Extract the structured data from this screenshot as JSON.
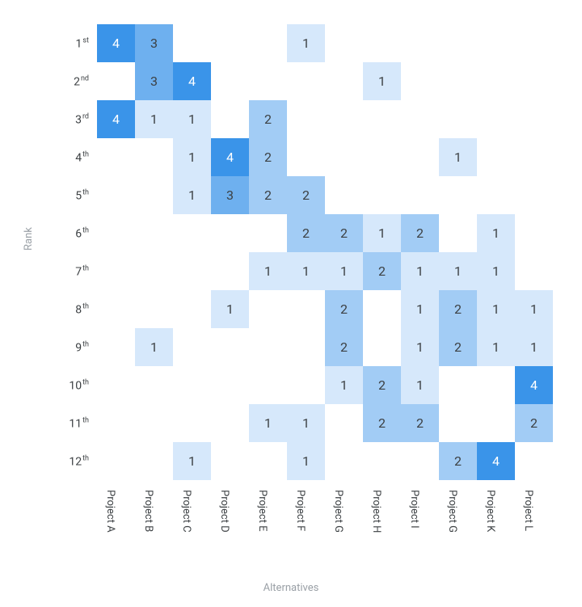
{
  "chart": {
    "type": "heatmap",
    "y_axis_title": "Rank",
    "x_axis_title": "Alternatives",
    "background_color": "#ffffff",
    "text_color": "#3c4043",
    "axis_title_color": "#9aa0a6",
    "cell_fontsize": 16,
    "label_fontsize": 14,
    "axis_title_fontsize": 13,
    "value_color_map": {
      "0": {
        "bg": "#ffffff",
        "fg": "#3c4043"
      },
      "1": {
        "bg": "#d6e8fb",
        "fg": "#3c4043"
      },
      "2": {
        "bg": "#a2ccf5",
        "fg": "#3c4043"
      },
      "3": {
        "bg": "#6eb0ef",
        "fg": "#3c4043"
      },
      "4": {
        "bg": "#3a94e9",
        "fg": "#ffffff"
      }
    },
    "row_labels": [
      {
        "num": "1",
        "suffix": "st"
      },
      {
        "num": "2",
        "suffix": "nd"
      },
      {
        "num": "3",
        "suffix": "rd"
      },
      {
        "num": "4",
        "suffix": "th"
      },
      {
        "num": "5",
        "suffix": "th"
      },
      {
        "num": "6",
        "suffix": "th"
      },
      {
        "num": "7",
        "suffix": "th"
      },
      {
        "num": "8",
        "suffix": "th"
      },
      {
        "num": "9",
        "suffix": "th"
      },
      {
        "num": "10",
        "suffix": "th"
      },
      {
        "num": "11",
        "suffix": "th"
      },
      {
        "num": "12",
        "suffix": "th"
      }
    ],
    "column_labels": [
      "Project A",
      "Project B",
      "Project C",
      "Project D",
      "Project E",
      "Project F",
      "Project G",
      "Project H",
      "Project I",
      "Project G",
      "Project K",
      "Project L"
    ],
    "values": [
      [
        4,
        3,
        0,
        0,
        0,
        1,
        0,
        0,
        0,
        0,
        0,
        0
      ],
      [
        0,
        3,
        4,
        0,
        0,
        0,
        0,
        1,
        0,
        0,
        0,
        0
      ],
      [
        4,
        1,
        1,
        0,
        2,
        0,
        0,
        0,
        0,
        0,
        0,
        0
      ],
      [
        0,
        0,
        1,
        4,
        2,
        0,
        0,
        0,
        0,
        1,
        0,
        0
      ],
      [
        0,
        0,
        1,
        3,
        2,
        2,
        0,
        0,
        0,
        0,
        0,
        0
      ],
      [
        0,
        0,
        0,
        0,
        0,
        2,
        2,
        1,
        2,
        0,
        1,
        0
      ],
      [
        0,
        0,
        0,
        0,
        1,
        1,
        1,
        2,
        1,
        1,
        1,
        0
      ],
      [
        0,
        0,
        0,
        1,
        0,
        0,
        2,
        0,
        1,
        2,
        1,
        1
      ],
      [
        0,
        1,
        0,
        0,
        0,
        0,
        2,
        0,
        1,
        2,
        1,
        1
      ],
      [
        0,
        0,
        0,
        0,
        0,
        0,
        1,
        2,
        1,
        0,
        0,
        4
      ],
      [
        0,
        0,
        0,
        0,
        1,
        1,
        0,
        2,
        2,
        0,
        0,
        2
      ],
      [
        0,
        0,
        1,
        0,
        0,
        1,
        0,
        0,
        0,
        2,
        4,
        0
      ]
    ]
  }
}
